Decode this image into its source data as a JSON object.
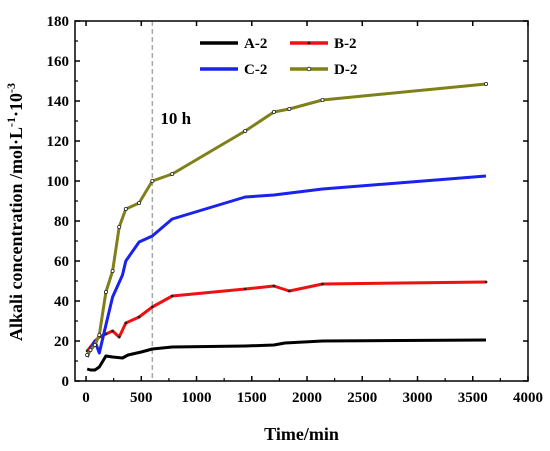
{
  "chart_data": {
    "type": "line",
    "xlabel": "Time/min",
    "ylabel_main": "Alkali concentration /mol·L",
    "ylabel_sup1": "-1",
    "ylabel_mid": "·10",
    "ylabel_sup2": "-3",
    "xlim": [
      -100,
      4000
    ],
    "ylim": [
      0,
      180
    ],
    "xticks": [
      0,
      500,
      1000,
      1500,
      2000,
      2500,
      3000,
      3500,
      4000
    ],
    "yticks": [
      0,
      20,
      40,
      60,
      80,
      100,
      120,
      140,
      160,
      180
    ],
    "grid": false,
    "legend_placement": "top-center",
    "annotation": {
      "text": "10 h",
      "x": 600
    },
    "series": [
      {
        "name": "A-2",
        "color": "#000000",
        "marker": "none",
        "points": [
          [
            10,
            6
          ],
          [
            40,
            5.5
          ],
          [
            80,
            5.5
          ],
          [
            120,
            7
          ],
          [
            180,
            12.5
          ],
          [
            240,
            12
          ],
          [
            330,
            11.5
          ],
          [
            380,
            13
          ],
          [
            500,
            14.5
          ],
          [
            600,
            16
          ],
          [
            780,
            17
          ],
          [
            1440,
            17.5
          ],
          [
            1700,
            18
          ],
          [
            1800,
            19
          ],
          [
            2140,
            20
          ],
          [
            3620,
            20.5
          ]
        ]
      },
      {
        "name": "B-2",
        "color": "#ee1111",
        "marker": "dot",
        "points": [
          [
            10,
            15
          ],
          [
            40,
            17
          ],
          [
            80,
            20
          ],
          [
            120,
            22
          ],
          [
            180,
            23.5
          ],
          [
            240,
            25
          ],
          [
            300,
            22
          ],
          [
            360,
            29
          ],
          [
            480,
            32
          ],
          [
            600,
            37
          ],
          [
            780,
            42.5
          ],
          [
            1440,
            46
          ],
          [
            1700,
            47.5
          ],
          [
            1840,
            45
          ],
          [
            2140,
            48.5
          ],
          [
            3620,
            49.5
          ]
        ]
      },
      {
        "name": "C-2",
        "color": "#1a22ee",
        "marker": "none",
        "points": [
          [
            10,
            12
          ],
          [
            40,
            16
          ],
          [
            80,
            20
          ],
          [
            120,
            14
          ],
          [
            180,
            28
          ],
          [
            240,
            42
          ],
          [
            330,
            53
          ],
          [
            360,
            60
          ],
          [
            480,
            69.5
          ],
          [
            600,
            72.5
          ],
          [
            780,
            81
          ],
          [
            1440,
            92
          ],
          [
            1700,
            93
          ],
          [
            2140,
            96
          ],
          [
            3620,
            102.5
          ]
        ]
      },
      {
        "name": "D-2",
        "color": "#80801a",
        "marker": "circle",
        "points": [
          [
            10,
            13
          ],
          [
            40,
            15.5
          ],
          [
            80,
            18
          ],
          [
            120,
            23
          ],
          [
            180,
            44.5
          ],
          [
            240,
            55
          ],
          [
            300,
            77
          ],
          [
            360,
            86
          ],
          [
            480,
            89
          ],
          [
            600,
            100
          ],
          [
            780,
            103.5
          ],
          [
            1440,
            125
          ],
          [
            1700,
            134.5
          ],
          [
            1840,
            136
          ],
          [
            2140,
            140.5
          ],
          [
            3620,
            148.5
          ]
        ]
      }
    ]
  }
}
